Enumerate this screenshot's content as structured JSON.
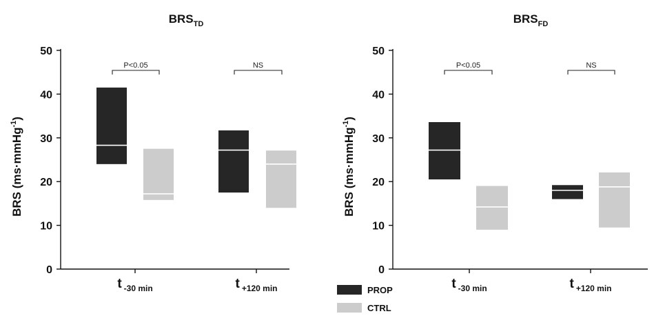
{
  "colors": {
    "PROP": "#262626",
    "CTRL": "#cccccc",
    "median": "#ffffff",
    "axis": "#111111"
  },
  "legend": [
    {
      "key": "PROP",
      "label": "PROP"
    },
    {
      "key": "CTRL",
      "label": "CTRL"
    }
  ],
  "chart_data": [
    {
      "type": "bar",
      "title": {
        "main": "BRS",
        "sub": "TD"
      },
      "ylabel": {
        "main": "BRS (ms·mmHg",
        "sup": "-1",
        "close": ")"
      },
      "ylim": [
        0,
        50
      ],
      "yticks": [
        "0",
        "10",
        "20",
        "30",
        "40",
        "50"
      ],
      "categories": [
        {
          "t": "t",
          "sub": "-30 min"
        },
        {
          "t": "t",
          "sub": "+120 min"
        }
      ],
      "series": [
        {
          "name": "PROP",
          "ranges": [
            {
              "low": 24,
              "high": 41.5,
              "median": 28.3
            },
            {
              "low": 17.5,
              "high": 31.7,
              "median": 27.2
            }
          ]
        },
        {
          "name": "CTRL",
          "ranges": [
            {
              "low": 15.8,
              "high": 27.5,
              "median": 17.2
            },
            {
              "low": 14,
              "high": 27.1,
              "median": 24
            }
          ]
        }
      ],
      "significance": [
        "P<0.05",
        "NS"
      ]
    },
    {
      "type": "bar",
      "title": {
        "main": "BRS",
        "sub": "FD"
      },
      "ylabel": {
        "main": "BRS (ms·mmHg",
        "sup": "-1",
        "close": ")"
      },
      "ylim": [
        0,
        50
      ],
      "yticks": [
        "0",
        "10",
        "20",
        "30",
        "40",
        "50"
      ],
      "categories": [
        {
          "t": "t",
          "sub": "-30 min"
        },
        {
          "t": "t",
          "sub": "+120 min"
        }
      ],
      "series": [
        {
          "name": "PROP",
          "ranges": [
            {
              "low": 20.5,
              "high": 33.6,
              "median": 27.2
            },
            {
              "low": 16,
              "high": 19.2,
              "median": 18
            }
          ]
        },
        {
          "name": "CTRL",
          "ranges": [
            {
              "low": 9,
              "high": 19,
              "median": 14.2
            },
            {
              "low": 9.5,
              "high": 22.1,
              "median": 18.8
            }
          ]
        }
      ],
      "significance": [
        "P<0.05",
        "NS"
      ]
    }
  ]
}
